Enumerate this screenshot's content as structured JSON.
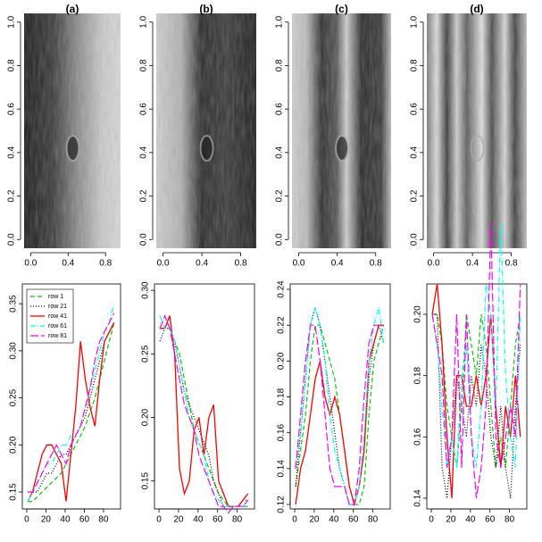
{
  "chart_data": [
    {
      "type": "image",
      "title": "(a)",
      "xlim": [
        -0.07,
        0.96
      ],
      "ylim": [
        -0.04,
        1.04
      ],
      "xticks": [
        {
          "value": 0,
          "label": "0.0"
        },
        0.4,
        0.8
      ],
      "yticks": [
        {
          "value": 0,
          "label": "0.0"
        },
        0.2,
        0.4,
        0.6,
        0.8,
        {
          "value": 1,
          "label": "1.0"
        }
      ]
    },
    {
      "type": "image",
      "title": "(b)",
      "xlim": [
        -0.07,
        0.96
      ],
      "ylim": [
        -0.04,
        1.04
      ],
      "xticks": [
        {
          "value": 0,
          "label": "0.0"
        },
        0.4,
        0.8
      ],
      "yticks": [
        {
          "value": 0,
          "label": "0.0"
        },
        0.2,
        0.4,
        0.6,
        0.8,
        {
          "value": 1,
          "label": "1.0"
        }
      ]
    },
    {
      "type": "image",
      "title": "(c)",
      "xlim": [
        -0.07,
        0.96
      ],
      "ylim": [
        -0.04,
        1.04
      ],
      "xticks": [
        {
          "value": 0,
          "label": "0.0"
        },
        0.4,
        0.8
      ],
      "yticks": [
        {
          "value": 0,
          "label": "0.0"
        },
        0.2,
        0.4,
        0.6,
        0.8,
        {
          "value": 1,
          "label": "1.0"
        }
      ]
    },
    {
      "type": "image",
      "title": "(d)",
      "xlim": [
        -0.07,
        0.96
      ],
      "ylim": [
        -0.04,
        1.04
      ],
      "xticks": [
        {
          "value": 0,
          "label": "0.0"
        },
        0.4,
        0.8
      ],
      "yticks": [
        {
          "value": 0,
          "label": "0.0"
        },
        0.2,
        0.4,
        0.6,
        0.8,
        {
          "value": 1,
          "label": "1.0"
        }
      ]
    },
    {
      "type": "line",
      "legend": "top-left",
      "xlim": [
        -4.6,
        97.7
      ],
      "ylim": [
        0.132,
        0.371
      ],
      "xticks": [
        0,
        20,
        40,
        60,
        80
      ],
      "yticks": [
        0.15,
        {
          "value": 0.2,
          "label": "0.20"
        },
        0.25,
        {
          "value": 0.3,
          "label": "0.30"
        },
        0.35
      ],
      "x": [
        1,
        6,
        11,
        16,
        21,
        26,
        31,
        36,
        41,
        46,
        51,
        56,
        61,
        66,
        71,
        76,
        81,
        86,
        91
      ],
      "series": [
        {
          "name": "row 1",
          "color": "#00cd00",
          "dash": "dashed",
          "values": [
            0.14,
            0.14,
            0.145,
            0.15,
            0.155,
            0.16,
            0.165,
            0.17,
            0.18,
            0.19,
            0.2,
            0.21,
            0.22,
            0.235,
            0.25,
            0.27,
            0.29,
            0.31,
            0.33
          ]
        },
        {
          "name": "row 21",
          "color": "#000000",
          "dash": "dotted",
          "values": [
            0.15,
            0.15,
            0.15,
            0.16,
            0.17,
            0.17,
            0.18,
            0.19,
            0.19,
            0.2,
            0.21,
            0.22,
            0.23,
            0.25,
            0.27,
            0.29,
            0.31,
            0.32,
            0.33
          ]
        },
        {
          "name": "row 41",
          "color": "#ff0000",
          "dash": "solid",
          "values": [
            0.14,
            0.15,
            0.17,
            0.19,
            0.2,
            0.2,
            0.19,
            0.18,
            0.14,
            0.19,
            0.24,
            0.31,
            0.27,
            0.24,
            0.22,
            0.27,
            0.31,
            0.32,
            0.33
          ]
        },
        {
          "name": "row 61",
          "color": "#00ffff",
          "dash": "dashdot",
          "values": [
            0.14,
            0.15,
            0.16,
            0.17,
            0.18,
            0.18,
            0.19,
            0.2,
            0.2,
            0.21,
            0.21,
            0.22,
            0.24,
            0.26,
            0.28,
            0.3,
            0.32,
            0.33,
            0.35
          ]
        },
        {
          "name": "row 81",
          "color": "#ff00ff",
          "dash": "longdash",
          "values": [
            0.15,
            0.15,
            0.16,
            0.17,
            0.18,
            0.19,
            0.2,
            0.19,
            0.18,
            0.2,
            0.21,
            0.22,
            0.24,
            0.26,
            0.29,
            0.31,
            0.32,
            0.33,
            0.34
          ]
        }
      ]
    },
    {
      "type": "line",
      "xlim": [
        -4.6,
        97.7
      ],
      "ylim": [
        0.128,
        0.305
      ],
      "xticks": [
        0,
        20,
        40,
        60,
        80
      ],
      "yticks": [
        0.15,
        {
          "value": 0.2,
          "label": "0.20"
        },
        0.25,
        {
          "value": 0.3,
          "label": "0.30"
        }
      ],
      "x": [
        1,
        6,
        11,
        16,
        21,
        26,
        31,
        36,
        41,
        46,
        51,
        56,
        61,
        66,
        71,
        76,
        81,
        86,
        91
      ],
      "series": [
        {
          "color": "#00cd00",
          "dash": "dashed",
          "values": [
            0.27,
            0.27,
            0.27,
            0.26,
            0.25,
            0.23,
            0.21,
            0.19,
            0.18,
            0.17,
            0.16,
            0.15,
            0.14,
            0.135,
            0.13,
            0.13,
            0.13,
            0.13,
            0.13
          ]
        },
        {
          "color": "#000000",
          "dash": "dotted",
          "values": [
            0.26,
            0.27,
            0.27,
            0.26,
            0.24,
            0.22,
            0.21,
            0.2,
            0.19,
            0.18,
            0.17,
            0.15,
            0.14,
            0.13,
            0.13,
            0.13,
            0.13,
            0.135,
            0.135
          ]
        },
        {
          "color": "#ff0000",
          "dash": "solid",
          "values": [
            0.27,
            0.27,
            0.28,
            0.25,
            0.16,
            0.14,
            0.15,
            0.19,
            0.2,
            0.17,
            0.2,
            0.21,
            0.15,
            0.14,
            0.13,
            0.13,
            0.13,
            0.135,
            0.14
          ]
        },
        {
          "color": "#00ffff",
          "dash": "dashdot",
          "values": [
            0.28,
            0.27,
            0.27,
            0.26,
            0.24,
            0.22,
            0.2,
            0.19,
            0.18,
            0.17,
            0.15,
            0.14,
            0.135,
            0.13,
            0.13,
            0.13,
            0.13,
            0.13,
            0.135
          ]
        },
        {
          "color": "#ff00ff",
          "dash": "longdash",
          "values": [
            0.27,
            0.28,
            0.27,
            0.25,
            0.23,
            0.21,
            0.2,
            0.19,
            0.17,
            0.16,
            0.15,
            0.14,
            0.13,
            0.13,
            0.125,
            0.13,
            0.13,
            0.13,
            0.135
          ]
        }
      ]
    },
    {
      "type": "line",
      "xlim": [
        -4.6,
        97.7
      ],
      "ylim": [
        0.1175,
        0.243
      ],
      "xticks": [
        0,
        20,
        40,
        60,
        80
      ],
      "yticks": [
        0.12,
        0.14,
        0.16,
        0.18,
        {
          "value": 0.2,
          "label": "0.20"
        },
        0.22,
        0.24
      ],
      "x": [
        1,
        6,
        11,
        16,
        21,
        26,
        31,
        36,
        41,
        46,
        51,
        56,
        61,
        66,
        71,
        76,
        81,
        86,
        91
      ],
      "series": [
        {
          "color": "#00cd00",
          "dash": "dashed",
          "values": [
            0.13,
            0.15,
            0.17,
            0.2,
            0.22,
            0.22,
            0.21,
            0.2,
            0.19,
            0.17,
            0.15,
            0.13,
            0.12,
            0.12,
            0.13,
            0.17,
            0.2,
            0.21,
            0.22
          ]
        },
        {
          "color": "#000000",
          "dash": "dotted",
          "values": [
            0.13,
            0.16,
            0.19,
            0.22,
            0.23,
            0.22,
            0.2,
            0.18,
            0.16,
            0.14,
            0.13,
            0.12,
            0.12,
            0.13,
            0.15,
            0.19,
            0.21,
            0.22,
            0.21
          ]
        },
        {
          "color": "#ff0000",
          "dash": "solid",
          "values": [
            0.12,
            0.14,
            0.15,
            0.17,
            0.19,
            0.2,
            0.18,
            0.17,
            0.18,
            0.17,
            0.15,
            0.13,
            0.12,
            0.13,
            0.15,
            0.2,
            0.21,
            0.22,
            0.22
          ]
        },
        {
          "color": "#00ffff",
          "dash": "dashdot",
          "values": [
            0.14,
            0.16,
            0.19,
            0.22,
            0.23,
            0.22,
            0.2,
            0.17,
            0.15,
            0.14,
            0.13,
            0.12,
            0.12,
            0.13,
            0.16,
            0.2,
            0.22,
            0.23,
            0.21
          ]
        },
        {
          "color": "#ff00ff",
          "dash": "longdash",
          "values": [
            0.14,
            0.17,
            0.2,
            0.22,
            0.22,
            0.2,
            0.17,
            0.14,
            0.13,
            0.13,
            0.13,
            0.12,
            0.12,
            0.14,
            0.18,
            0.21,
            0.22,
            0.22,
            0.22
          ]
        }
      ]
    },
    {
      "type": "line",
      "xlim": [
        -4.6,
        97.7
      ],
      "ylim": [
        0.1365,
        0.2099
      ],
      "xticks": [
        0,
        20,
        40,
        60,
        80
      ],
      "yticks": [
        0.14,
        0.16,
        0.18,
        {
          "value": 0.2,
          "label": "0.20"
        }
      ],
      "x": [
        1,
        6,
        11,
        16,
        21,
        26,
        31,
        36,
        41,
        46,
        51,
        56,
        61,
        66,
        71,
        76,
        81,
        86,
        91
      ],
      "series": [
        {
          "color": "#00cd00",
          "dash": "dashed",
          "values": [
            0.2,
            0.2,
            0.19,
            0.17,
            0.16,
            0.15,
            0.17,
            0.2,
            0.19,
            0.18,
            0.2,
            0.19,
            0.17,
            0.15,
            0.16,
            0.15,
            0.17,
            0.19,
            0.2
          ]
        },
        {
          "color": "#000000",
          "dash": "dotted",
          "values": [
            0.2,
            0.2,
            0.15,
            0.14,
            0.16,
            0.18,
            0.17,
            0.16,
            0.18,
            0.17,
            0.19,
            0.18,
            0.16,
            0.15,
            0.17,
            0.15,
            0.14,
            0.17,
            0.19
          ]
        },
        {
          "color": "#ff0000",
          "dash": "solid",
          "values": [
            0.2,
            0.21,
            0.19,
            0.16,
            0.14,
            0.18,
            0.18,
            0.17,
            0.17,
            0.18,
            0.17,
            0.18,
            0.2,
            0.17,
            0.15,
            0.17,
            0.16,
            0.18,
            0.16
          ]
        },
        {
          "color": "#00ffff",
          "dash": "dashdot",
          "values": [
            0.2,
            0.19,
            0.17,
            0.15,
            0.16,
            0.15,
            0.18,
            0.19,
            0.16,
            0.15,
            0.17,
            0.21,
            0.2,
            0.17,
            0.23,
            0.18,
            0.16,
            0.15,
            0.2
          ]
        },
        {
          "color": "#ff00ff",
          "dash": "longdash",
          "values": [
            0.2,
            0.19,
            0.18,
            0.15,
            0.16,
            0.2,
            0.15,
            0.2,
            0.16,
            0.14,
            0.15,
            0.17,
            0.23,
            0.16,
            0.15,
            0.16,
            0.17,
            0.16,
            0.21
          ]
        }
      ]
    }
  ]
}
